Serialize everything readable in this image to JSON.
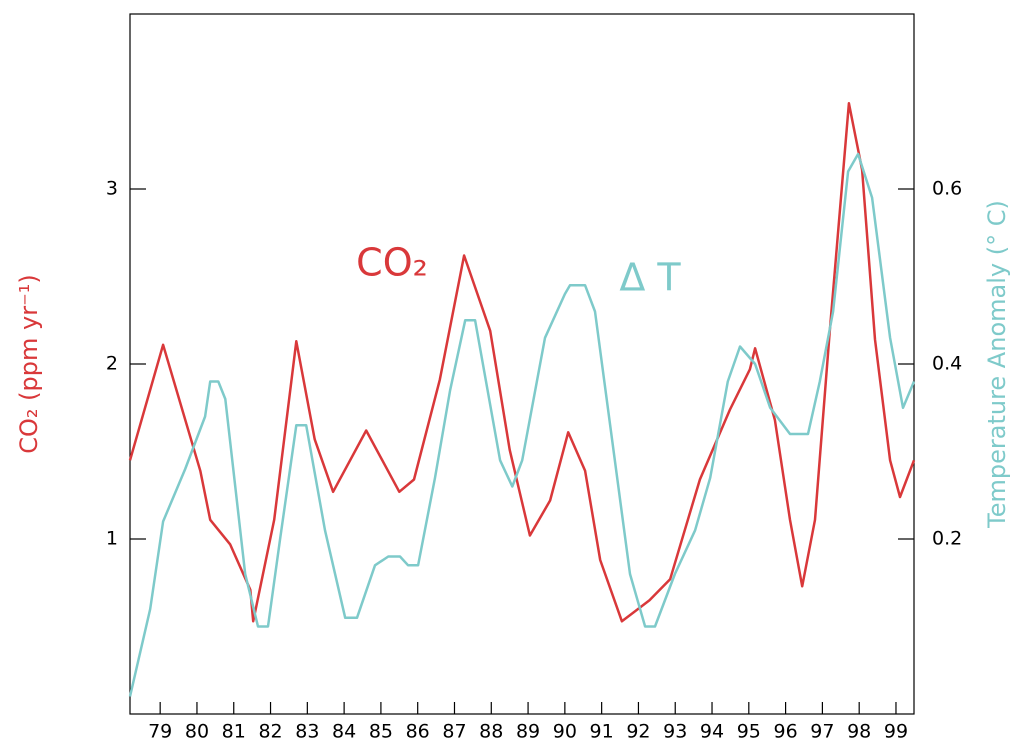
{
  "chart_data": {
    "type": "line",
    "ylabel": "CO₂ (ppm yr⁻¹)",
    "y2label": "Temperature Anomaly (° C)",
    "xlim": [
      78.18,
      99.49
    ],
    "xticks": [
      79,
      80,
      81,
      82,
      83,
      84,
      85,
      86,
      87,
      88,
      89,
      90,
      91,
      92,
      93,
      94,
      95,
      96,
      97,
      98,
      99
    ],
    "ylim": [
      0,
      4
    ],
    "yticks": [
      1,
      2,
      3
    ],
    "y2lim": [
      0,
      0.8
    ],
    "y2ticks": [
      0.2,
      0.4,
      0.6
    ],
    "series": [
      {
        "name": "CO₂",
        "color": "#d9383a",
        "x": [
          78.18,
          79.08,
          80.09,
          80.36,
          80.9,
          81.45,
          81.53,
          82.1,
          82.7,
          83.2,
          83.7,
          84.6,
          85.5,
          85.9,
          86.6,
          87.26,
          87.97,
          88.5,
          89.05,
          89.6,
          90.09,
          90.55,
          90.96,
          91.55,
          92.3,
          92.86,
          93.67,
          94.49,
          95.03,
          95.17,
          95.71,
          96.12,
          96.45,
          96.8,
          97.2,
          97.72,
          98.08,
          98.43,
          98.84,
          99.11,
          99.49
        ],
        "values": [
          1.45,
          2.11,
          1.39,
          1.11,
          0.97,
          0.71,
          0.53,
          1.11,
          2.13,
          1.57,
          1.27,
          1.62,
          1.27,
          1.34,
          1.91,
          2.62,
          2.19,
          1.51,
          1.02,
          1.22,
          1.61,
          1.39,
          0.88,
          0.53,
          0.65,
          0.77,
          1.34,
          1.74,
          1.97,
          2.09,
          1.68,
          1.11,
          0.73,
          1.11,
          2.19,
          3.49,
          3.11,
          2.14,
          1.45,
          1.24,
          1.45
        ]
      },
      {
        "name": "Δ T",
        "color": "#7ecaca",
        "axis": "y2",
        "x": [
          78.18,
          78.73,
          79.08,
          79.68,
          80.22,
          80.36,
          80.58,
          80.77,
          81.31,
          81.66,
          81.93,
          82.26,
          82.7,
          82.97,
          83.48,
          84.03,
          84.35,
          84.84,
          85.2,
          85.52,
          85.74,
          86.01,
          86.47,
          86.88,
          87.29,
          87.56,
          88.24,
          88.57,
          88.84,
          89.46,
          90.0,
          90.14,
          90.55,
          90.82,
          91.77,
          92.18,
          92.45,
          92.99,
          93.54,
          93.95,
          94.43,
          94.76,
          95.17,
          95.58,
          96.12,
          96.61,
          96.93,
          97.29,
          97.7,
          97.97,
          98.35,
          98.84,
          99.19,
          99.49
        ],
        "values": [
          0.02,
          0.12,
          0.22,
          0.28,
          0.34,
          0.38,
          0.38,
          0.36,
          0.16,
          0.1,
          0.1,
          0.2,
          0.33,
          0.33,
          0.21,
          0.11,
          0.11,
          0.17,
          0.18,
          0.18,
          0.17,
          0.17,
          0.27,
          0.37,
          0.45,
          0.45,
          0.29,
          0.26,
          0.29,
          0.43,
          0.48,
          0.49,
          0.49,
          0.46,
          0.16,
          0.1,
          0.1,
          0.16,
          0.21,
          0.27,
          0.38,
          0.42,
          0.4,
          0.35,
          0.32,
          0.32,
          0.38,
          0.46,
          0.62,
          0.64,
          0.59,
          0.43,
          0.35,
          0.38
        ]
      }
    ]
  }
}
